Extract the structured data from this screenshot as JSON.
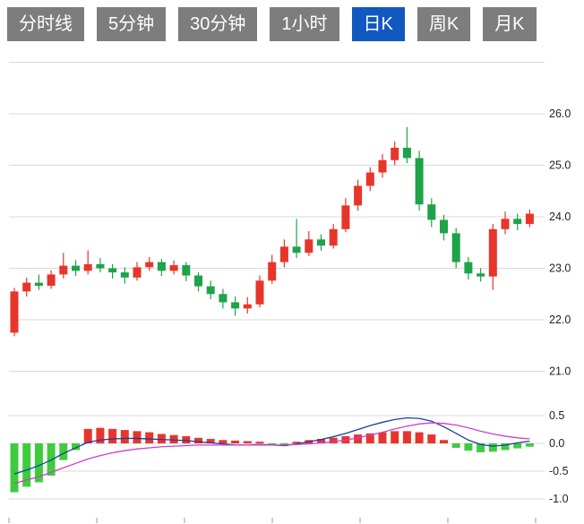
{
  "colors": {
    "up": "#e8352b",
    "down": "#1ea348",
    "hist_up": "#e8352b",
    "hist_down": "#3ecc3e",
    "dif": "#1b3f9e",
    "dea": "#cc3fcc",
    "grid": "#d9d9d9",
    "label": "#222222",
    "tick": "#999999",
    "tab_bg": "#7d7d7d",
    "tab_active_bg": "#1159c1",
    "tab_text": "#ffffff"
  },
  "tabs": [
    {
      "id": "time-line",
      "label": "分时线",
      "active": false
    },
    {
      "id": "5min",
      "label": "5分钟",
      "active": false
    },
    {
      "id": "30min",
      "label": "30分钟",
      "active": false
    },
    {
      "id": "1hour",
      "label": "1小时",
      "active": false
    },
    {
      "id": "day-k",
      "label": "日K",
      "active": true
    },
    {
      "id": "week-k",
      "label": "周K",
      "active": false
    },
    {
      "id": "month-k",
      "label": "月K",
      "active": false
    }
  ],
  "chart_data": {
    "type": "candlestick+macd",
    "candle_format": "[open, high, low, close]",
    "main": {
      "ylim": [
        20.9,
        27.0
      ],
      "grid_values": [
        27,
        26,
        25,
        24,
        23,
        22,
        21
      ],
      "axis_labels": [
        {
          "text": "26.0",
          "value": 26
        },
        {
          "text": "25.0",
          "value": 25
        },
        {
          "text": "24.0",
          "value": 24
        },
        {
          "text": "23.0",
          "value": 23
        },
        {
          "text": "22.0",
          "value": 22
        },
        {
          "text": "21.0",
          "value": 21
        }
      ],
      "candles": [
        [
          21.75,
          22.62,
          21.68,
          22.55
        ],
        [
          22.55,
          22.82,
          22.45,
          22.72
        ],
        [
          22.72,
          22.88,
          22.58,
          22.66
        ],
        [
          22.66,
          22.96,
          22.6,
          22.88
        ],
        [
          22.88,
          23.3,
          22.8,
          23.05
        ],
        [
          23.05,
          23.16,
          22.85,
          22.95
        ],
        [
          22.95,
          23.35,
          22.88,
          23.08
        ],
        [
          23.08,
          23.2,
          22.92,
          23.0
        ],
        [
          23.0,
          23.08,
          22.8,
          22.92
        ],
        [
          22.92,
          23.02,
          22.7,
          22.82
        ],
        [
          22.82,
          23.12,
          22.76,
          23.02
        ],
        [
          23.02,
          23.22,
          22.95,
          23.12
        ],
        [
          23.12,
          23.18,
          22.85,
          22.95
        ],
        [
          22.95,
          23.15,
          22.88,
          23.06
        ],
        [
          23.06,
          23.12,
          22.75,
          22.86
        ],
        [
          22.86,
          22.92,
          22.55,
          22.65
        ],
        [
          22.65,
          22.76,
          22.4,
          22.5
        ],
        [
          22.5,
          22.6,
          22.22,
          22.34
        ],
        [
          22.34,
          22.45,
          22.08,
          22.22
        ],
        [
          22.22,
          22.44,
          22.12,
          22.3
        ],
        [
          22.3,
          22.86,
          22.24,
          22.76
        ],
        [
          22.76,
          23.26,
          22.7,
          23.12
        ],
        [
          23.12,
          23.56,
          23.02,
          23.42
        ],
        [
          23.42,
          23.96,
          23.2,
          23.3
        ],
        [
          23.3,
          23.72,
          23.24,
          23.56
        ],
        [
          23.56,
          23.66,
          23.34,
          23.44
        ],
        [
          23.44,
          23.86,
          23.38,
          23.76
        ],
        [
          23.76,
          24.36,
          23.7,
          24.22
        ],
        [
          24.22,
          24.72,
          24.12,
          24.6
        ],
        [
          24.6,
          24.96,
          24.5,
          24.86
        ],
        [
          24.86,
          25.22,
          24.76,
          25.1
        ],
        [
          25.1,
          25.46,
          25.0,
          25.34
        ],
        [
          25.34,
          25.74,
          25.04,
          25.14
        ],
        [
          25.14,
          25.28,
          24.12,
          24.24
        ],
        [
          24.24,
          24.36,
          23.8,
          23.94
        ],
        [
          23.94,
          24.04,
          23.54,
          23.68
        ],
        [
          23.68,
          23.78,
          23.0,
          23.12
        ],
        [
          23.12,
          23.22,
          22.78,
          22.9
        ],
        [
          22.9,
          23.0,
          22.74,
          22.84
        ],
        [
          22.84,
          23.86,
          22.58,
          23.76
        ],
        [
          23.76,
          24.1,
          23.66,
          23.96
        ],
        [
          23.96,
          24.06,
          23.74,
          23.86
        ],
        [
          23.86,
          24.14,
          23.8,
          24.06
        ]
      ]
    },
    "indicator": {
      "name": "MACD",
      "ylim": [
        -1.1,
        0.7
      ],
      "grid_values": [
        0.5,
        0,
        -0.5,
        -1
      ],
      "axis_labels": [
        {
          "text": "0.5",
          "value": 0.5
        },
        {
          "text": "0.0",
          "value": 0
        },
        {
          "text": "-0.5",
          "value": -0.5
        },
        {
          "text": "-1.0",
          "value": -1
        }
      ],
      "histogram": [
        -0.88,
        -0.78,
        -0.7,
        -0.58,
        -0.3,
        -0.12,
        0.26,
        0.28,
        0.26,
        0.24,
        0.22,
        0.2,
        0.17,
        0.15,
        0.13,
        0.1,
        0.08,
        0.06,
        0.05,
        0.04,
        0.03,
        -0.04,
        -0.05,
        0.03,
        0.06,
        0.08,
        0.1,
        0.13,
        0.16,
        0.18,
        0.2,
        0.22,
        0.22,
        0.2,
        0.16,
        0.06,
        -0.08,
        -0.13,
        -0.16,
        -0.15,
        -0.12,
        -0.09,
        -0.06
      ],
      "dif_line": [
        -0.55,
        -0.48,
        -0.4,
        -0.3,
        -0.18,
        -0.08,
        0.02,
        0.06,
        0.08,
        0.09,
        0.09,
        0.08,
        0.07,
        0.06,
        0.05,
        0.03,
        0.01,
        -0.01,
        -0.03,
        -0.03,
        -0.02,
        -0.03,
        -0.04,
        -0.01,
        0.03,
        0.07,
        0.12,
        0.18,
        0.25,
        0.32,
        0.38,
        0.43,
        0.46,
        0.45,
        0.4,
        0.3,
        0.18,
        0.06,
        -0.02,
        -0.05,
        -0.03,
        0.01,
        0.04
      ],
      "dea_line": [
        -0.72,
        -0.66,
        -0.6,
        -0.52,
        -0.44,
        -0.36,
        -0.28,
        -0.22,
        -0.17,
        -0.13,
        -0.1,
        -0.08,
        -0.06,
        -0.05,
        -0.04,
        -0.03,
        -0.03,
        -0.03,
        -0.03,
        -0.03,
        -0.03,
        -0.03,
        -0.03,
        -0.02,
        -0.01,
        0.01,
        0.03,
        0.06,
        0.1,
        0.15,
        0.2,
        0.26,
        0.31,
        0.35,
        0.37,
        0.36,
        0.33,
        0.28,
        0.22,
        0.17,
        0.13,
        0.1,
        0.08
      ]
    }
  }
}
